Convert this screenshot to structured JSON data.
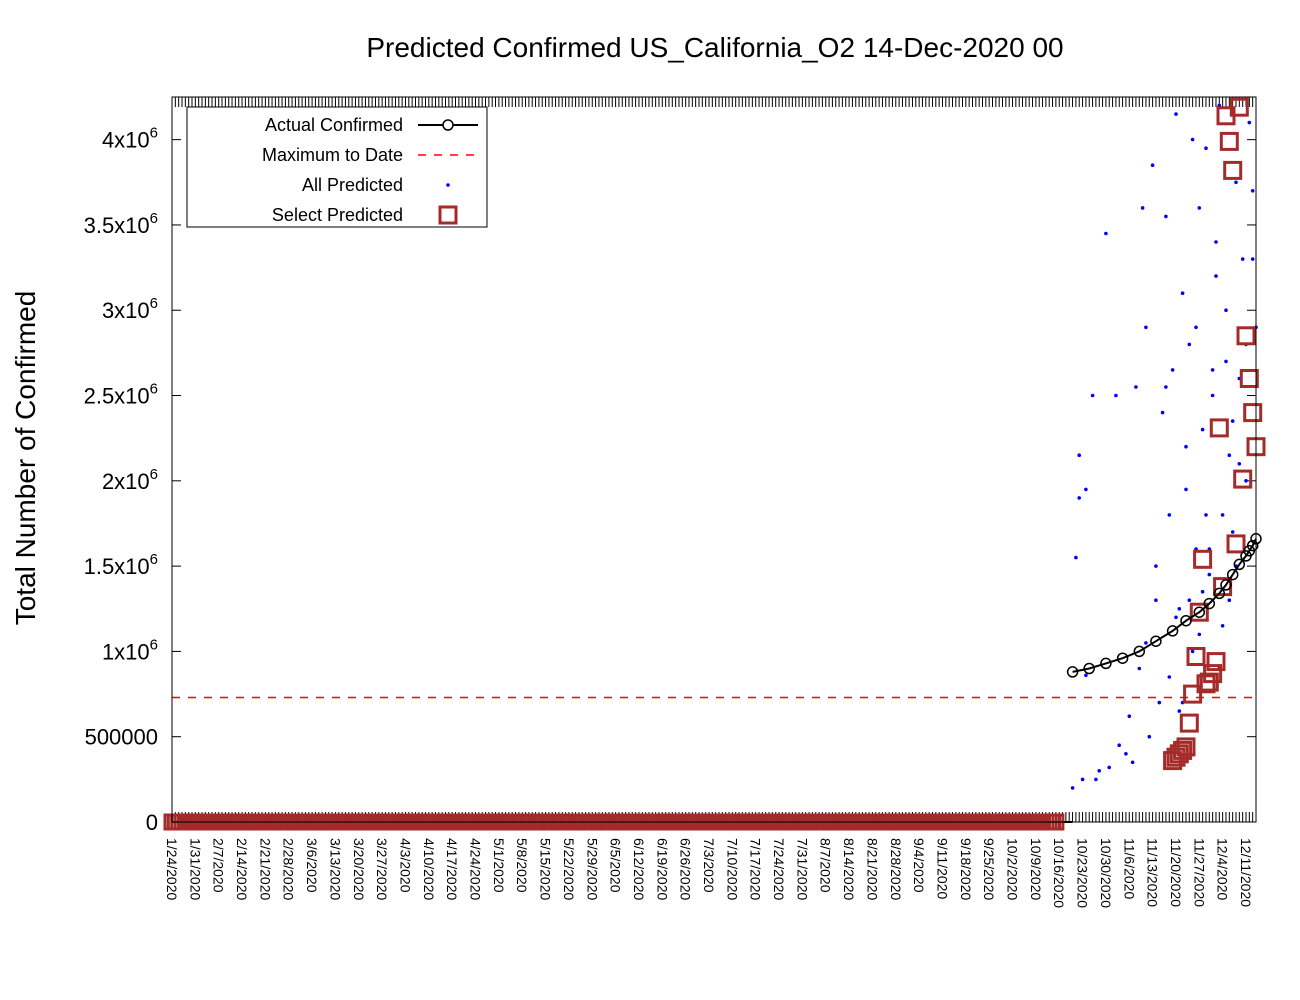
{
  "chart_data": {
    "type": "scatter",
    "title": "Predicted Confirmed US_California_O2 14-Dec-2020 00",
    "xlabel": "",
    "ylabel": "Total Number of Confirmed",
    "ylim": [
      0,
      4250000
    ],
    "x_start": "1/24/2020",
    "x_end": "12/14/2020",
    "y_ticks": [
      {
        "value": 0,
        "label": "0",
        "exp": ""
      },
      {
        "value": 500000,
        "label": "500000",
        "exp": ""
      },
      {
        "value": 1000000,
        "label": "1x10",
        "exp": "6"
      },
      {
        "value": 1500000,
        "label": "1.5x10",
        "exp": "6"
      },
      {
        "value": 2000000,
        "label": "2x10",
        "exp": "6"
      },
      {
        "value": 2500000,
        "label": "2.5x10",
        "exp": "6"
      },
      {
        "value": 3000000,
        "label": "3x10",
        "exp": "6"
      },
      {
        "value": 3500000,
        "label": "3.5x10",
        "exp": "6"
      },
      {
        "value": 4000000,
        "label": "4x10",
        "exp": "6"
      }
    ],
    "x_ticks": [
      "1/24/2020",
      "1/31/2020",
      "2/7/2020",
      "2/14/2020",
      "2/21/2020",
      "2/28/2020",
      "3/6/2020",
      "3/13/2020",
      "3/20/2020",
      "3/27/2020",
      "4/3/2020",
      "4/10/2020",
      "4/17/2020",
      "4/24/2020",
      "5/1/2020",
      "5/8/2020",
      "5/15/2020",
      "5/22/2020",
      "5/29/2020",
      "6/5/2020",
      "6/12/2020",
      "6/19/2020",
      "6/26/2020",
      "7/3/2020",
      "7/10/2020",
      "7/17/2020",
      "7/24/2020",
      "7/31/2020",
      "8/7/2020",
      "8/14/2020",
      "8/21/2020",
      "8/28/2020",
      "9/4/2020",
      "9/11/2020",
      "9/18/2020",
      "9/25/2020",
      "10/2/2020",
      "10/9/2020",
      "10/16/2020",
      "10/23/2020",
      "10/30/2020",
      "11/6/2020",
      "11/13/2020",
      "11/20/2020",
      "11/27/2020",
      "12/4/2020",
      "12/11/2020"
    ],
    "legend": {
      "placement": "top-left",
      "entries": [
        "Actual Confirmed",
        "Maximum to Date",
        "All Predicted",
        "Select Predicted"
      ]
    },
    "series": [
      {
        "name": "Actual Confirmed",
        "color": "#000000",
        "marker": "circle",
        "x": [
          "2020-10-20",
          "2020-10-25",
          "2020-10-30",
          "2020-11-04",
          "2020-11-09",
          "2020-11-14",
          "2020-11-19",
          "2020-11-23",
          "2020-11-27",
          "2020-11-30",
          "2020-12-03",
          "2020-12-05",
          "2020-12-07",
          "2020-12-09",
          "2020-12-11",
          "2020-12-12",
          "2020-12-13",
          "2020-12-14"
        ],
        "y": [
          880000,
          900000,
          930000,
          960000,
          1000000,
          1060000,
          1120000,
          1180000,
          1230000,
          1280000,
          1340000,
          1390000,
          1450000,
          1510000,
          1560000,
          1590000,
          1620000,
          1660000
        ]
      },
      {
        "name": "Maximum to Date",
        "color": "#ff0000",
        "style": "dashed",
        "y": 730000
      },
      {
        "name": "All Predicted",
        "color": "#0000ff",
        "marker": "dot",
        "x": [
          "2020-10-20",
          "2020-10-21",
          "2020-10-22",
          "2020-10-23",
          "2020-10-24",
          "2020-10-26",
          "2020-10-28",
          "2020-10-30",
          "2020-11-02",
          "2020-11-05",
          "2020-11-06",
          "2020-11-08",
          "2020-11-09",
          "2020-11-10",
          "2020-11-11",
          "2020-11-12",
          "2020-11-13",
          "2020-11-14",
          "2020-11-15",
          "2020-11-16",
          "2020-11-17",
          "2020-11-18",
          "2020-11-19",
          "2020-11-20",
          "2020-11-21",
          "2020-11-22",
          "2020-11-23",
          "2020-11-24",
          "2020-11-25",
          "2020-11-26",
          "2020-11-27",
          "2020-11-28",
          "2020-11-29",
          "2020-11-30",
          "2020-12-01",
          "2020-12-02",
          "2020-12-03",
          "2020-12-04",
          "2020-12-05",
          "2020-12-06",
          "2020-12-07",
          "2020-12-08",
          "2020-12-09",
          "2020-12-10",
          "2020-12-11",
          "2020-12-12",
          "2020-12-13",
          "2020-12-14",
          "2020-10-22",
          "2020-10-24",
          "2020-10-27",
          "2020-10-31",
          "2020-11-03",
          "2020-11-07",
          "2020-11-11",
          "2020-11-14",
          "2020-11-17",
          "2020-11-20",
          "2020-11-23",
          "2020-11-26",
          "2020-11-29",
          "2020-12-02",
          "2020-12-05",
          "2020-12-08",
          "2020-12-11",
          "2020-12-13",
          "2020-11-18",
          "2020-11-21",
          "2020-11-24",
          "2020-11-27",
          "2020-11-30",
          "2020-12-03",
          "2020-12-06",
          "2020-12-09",
          "2020-11-22",
          "2020-11-25",
          "2020-11-28",
          "2020-12-01",
          "2020-12-04",
          "2020-12-07"
        ],
        "y": [
          200000,
          1550000,
          2150000,
          250000,
          860000,
          2500000,
          300000,
          3450000,
          2500000,
          400000,
          620000,
          2550000,
          900000,
          3600000,
          2900000,
          500000,
          3850000,
          1300000,
          700000,
          2400000,
          3550000,
          1800000,
          2650000,
          4150000,
          1250000,
          3100000,
          1950000,
          2800000,
          4000000,
          1600000,
          3600000,
          2300000,
          3950000,
          1450000,
          2650000,
          3200000,
          4200000,
          1150000,
          3000000,
          2150000,
          1700000,
          3750000,
          2600000,
          3300000,
          2000000,
          4100000,
          3300000,
          2900000,
          1900000,
          1950000,
          250000,
          320000,
          450000,
          350000,
          1050000,
          1500000,
          2550000,
          1200000,
          2200000,
          2900000,
          1800000,
          3400000,
          2700000,
          1500000,
          2800000,
          3700000,
          850000,
          650000,
          1300000,
          1100000,
          1600000,
          900000,
          1300000,
          2100000,
          700000,
          1000000,
          1350000,
          2500000,
          1800000,
          2350000
        ]
      },
      {
        "name": "Select Predicted",
        "color": "#a52a2a",
        "marker": "square",
        "x": [
          "2020-11-19",
          "2020-11-20",
          "2020-11-21",
          "2020-11-22",
          "2020-11-23",
          "2020-11-24",
          "2020-11-25",
          "2020-11-26",
          "2020-11-27",
          "2020-11-28",
          "2020-11-29",
          "2020-11-30",
          "2020-12-01",
          "2020-12-02",
          "2020-12-03",
          "2020-12-04",
          "2020-12-05",
          "2020-12-06",
          "2020-12-07",
          "2020-12-08",
          "2020-12-09",
          "2020-12-10",
          "2020-12-11",
          "2020-12-12",
          "2020-12-13",
          "2020-12-14"
        ],
        "y": [
          360000,
          380000,
          400000,
          420000,
          440000,
          580000,
          750000,
          970000,
          1230000,
          1540000,
          810000,
          820000,
          870000,
          940000,
          2310000,
          1380000,
          4140000,
          3990000,
          3820000,
          1630000,
          4190000,
          2010000,
          2850000,
          2600000,
          2400000,
          2200000
        ]
      }
    ]
  }
}
